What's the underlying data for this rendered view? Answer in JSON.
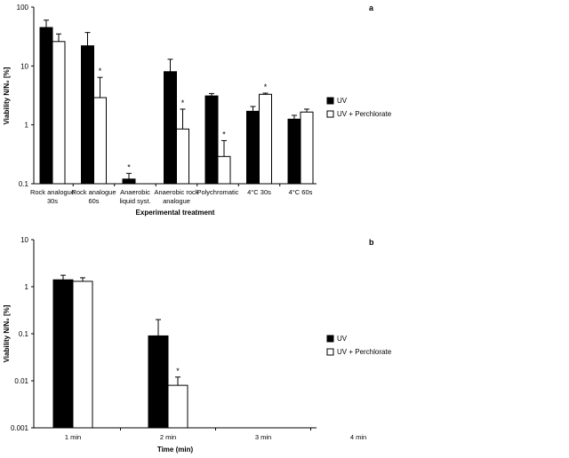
{
  "chart_data": [
    {
      "type": "bar",
      "panel_label": "a",
      "yscale": "log",
      "ylim": [
        0.1,
        100
      ],
      "yticks": [
        "0.1",
        "1",
        "10",
        "100"
      ],
      "ylabel": "Viability N/N₀ [%]",
      "xlabel": "Experimental treatment",
      "categories": [
        [
          "Rock analogue",
          "30s"
        ],
        [
          "Rock analogue",
          "60s"
        ],
        [
          "Anaerobic",
          "liquid syst."
        ],
        [
          "Anaerobic rock",
          "analogue"
        ],
        [
          "Polychromatic"
        ],
        [
          "4°C 30s"
        ],
        [
          "4°C 60s"
        ]
      ],
      "series": [
        {
          "name": "UV",
          "color": "#000000",
          "values": [
            45,
            22,
            0.12,
            8,
            3.1,
            1.7,
            1.25
          ],
          "err": [
            15,
            15,
            0.03,
            5,
            0.3,
            0.35,
            0.2
          ],
          "sig": [
            false,
            false,
            true,
            false,
            false,
            false,
            false
          ]
        },
        {
          "name": "UV + Perchlorate",
          "color": "#ffffff",
          "values": [
            26,
            2.9,
            null,
            0.85,
            0.29,
            3.3,
            1.65
          ],
          "err": [
            9,
            3.5,
            null,
            1.0,
            0.25,
            0.15,
            0.2
          ],
          "sig": [
            false,
            true,
            false,
            true,
            true,
            true,
            false
          ]
        }
      ],
      "legend_position": "right"
    },
    {
      "type": "bar",
      "panel_label": "b",
      "yscale": "log",
      "ylim": [
        0.001,
        10
      ],
      "yticks": [
        "0.001",
        "0.01",
        "0.1",
        "1",
        "10"
      ],
      "ylabel": "Viability N/N₀ [%]",
      "xlabel": "Time (min)",
      "categories": [
        [
          "1 min"
        ],
        [
          "2 min"
        ],
        [
          "3 min"
        ],
        [
          "4 min"
        ]
      ],
      "series": [
        {
          "name": "UV",
          "color": "#000000",
          "values": [
            1.4,
            0.09,
            null,
            null
          ],
          "err": [
            0.35,
            0.11,
            null,
            null
          ],
          "sig": [
            false,
            false,
            false,
            false
          ]
        },
        {
          "name": "UV + Perchlorate",
          "color": "#ffffff",
          "values": [
            1.3,
            0.008,
            null,
            null
          ],
          "err": [
            0.25,
            0.004,
            null,
            null
          ],
          "sig": [
            false,
            true,
            false,
            false
          ]
        }
      ],
      "legend_position": "right"
    }
  ]
}
